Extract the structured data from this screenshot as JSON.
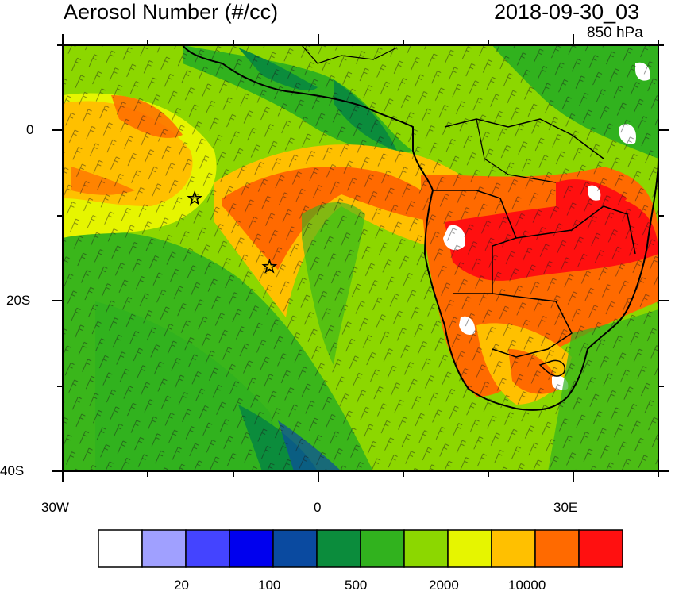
{
  "header": {
    "title": "Aerosol Number (#/cc)",
    "datetime": "2018-09-30_03",
    "level": "850 hPa"
  },
  "map": {
    "lon_labels": [
      "30W",
      "0",
      "30E"
    ],
    "lat_labels": [
      "0",
      "20S",
      "40S"
    ],
    "lon_range_deg": [
      -30,
      40
    ],
    "lat_range_deg": [
      -40,
      10
    ],
    "markers": [
      {
        "symbol": "star",
        "lon": -14.5,
        "lat": -8
      },
      {
        "symbol": "star",
        "lon": -5.7,
        "lat": -16
      }
    ]
  },
  "colorbar": {
    "colors": [
      "#ffffff",
      "#a0a0ff",
      "#4444ff",
      "#0000ee",
      "#0a4aa0",
      "#0b8c3c",
      "#31b21e",
      "#8cd700",
      "#e6f500",
      "#ffc000",
      "#ff6a00",
      "#ff1010"
    ],
    "labels": [
      "20",
      "100",
      "500",
      "2000",
      "10000"
    ]
  }
}
